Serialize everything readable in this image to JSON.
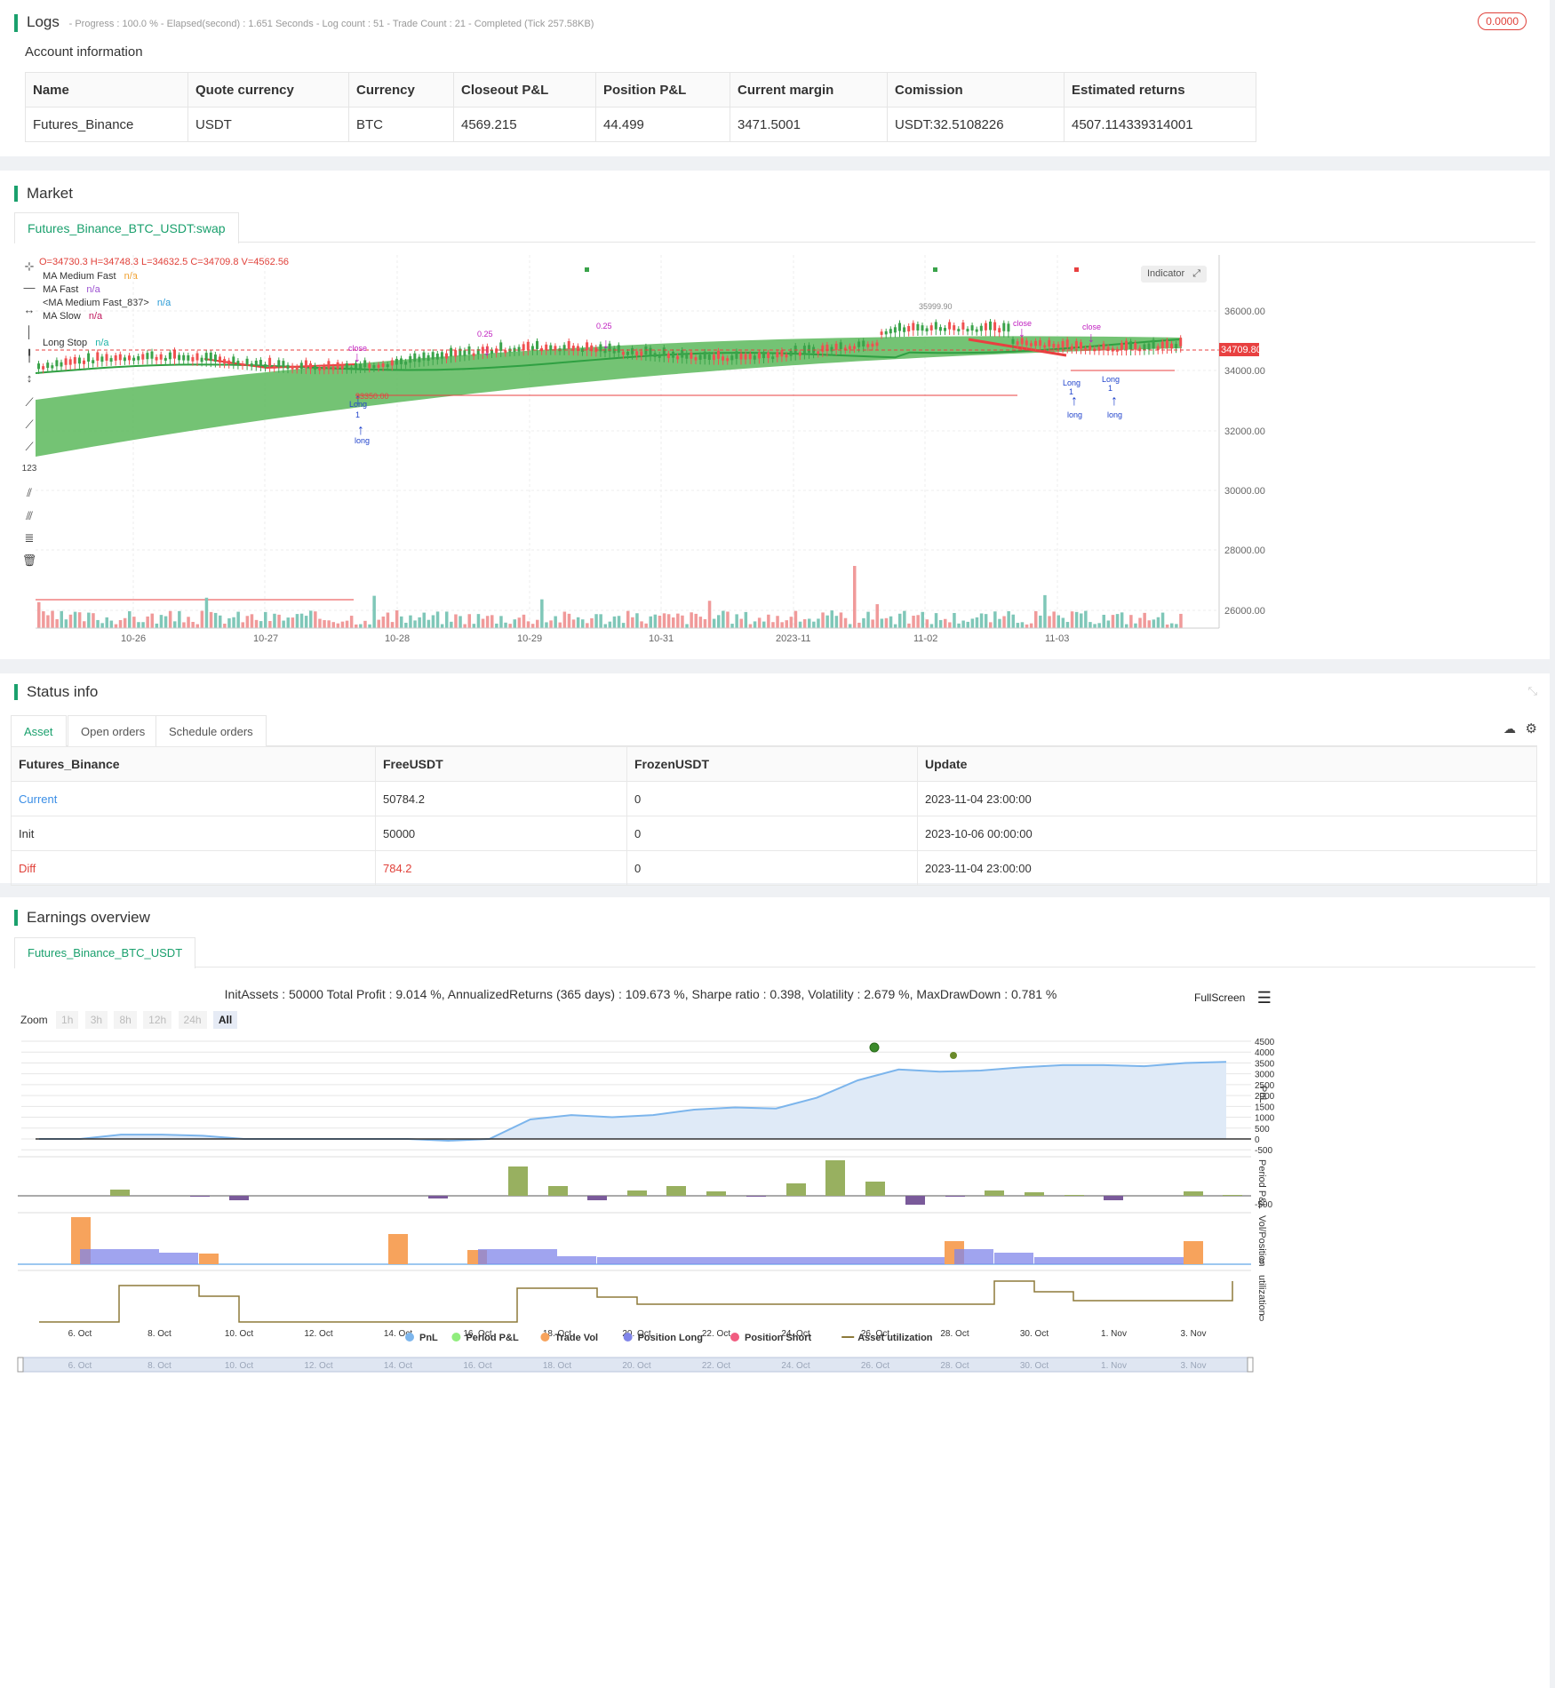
{
  "logs": {
    "title": "Logs",
    "status_line": "- Progress : 100.0 % - Elapsed(second) : 1.651 Seconds - Log count : 51 - Trade Count : 21 - Completed (Tick 257.58KB)",
    "badge": "0.0000",
    "account_title": "Account information",
    "headers": [
      "Name",
      "Quote currency",
      "Currency",
      "Closeout P&L",
      "Position P&L",
      "Current margin",
      "Comission",
      "Estimated returns"
    ],
    "row": [
      "Futures_Binance",
      "USDT",
      "BTC",
      "4569.215",
      "44.499",
      "3471.5001",
      "USDT:32.5108226",
      "4507.114339314001"
    ]
  },
  "market": {
    "title": "Market",
    "symbol_tab": "Futures_Binance_BTC_USDT:swap",
    "ohlc": "O=34730.3 H=34748.3 L=34632.5 C=34709.8 V=4562.56",
    "legend": [
      {
        "name": "MA Medium Fast",
        "val": "n/a",
        "color": "#f0a030"
      },
      {
        "name": "MA Fast",
        "val": "n/a",
        "color": "#9b4fd0"
      },
      {
        "name": "<MA Medium Fast_837>",
        "val": "n/a",
        "color": "#2a9bd6"
      },
      {
        "name": "MA Slow",
        "val": "n/a",
        "color": "#c0195e"
      },
      {
        "name": "Long Stop",
        "val": "n/a",
        "color": "#1fb5a8"
      }
    ],
    "indicator_btn": "Indicator",
    "price_label": "34709.80",
    "y_ticks": [
      "36000.00",
      "34000.00",
      "32000.00",
      "30000.00",
      "28000.00",
      "26000.00"
    ],
    "x_ticks": [
      "10-26",
      "10-27",
      "10-28",
      "10-29",
      "10-31",
      "2023-11",
      "11-02",
      "11-03"
    ],
    "annotations": {
      "high_label": "35999.90",
      "low_label": "33350.00",
      "close": "close",
      "long": "long",
      "long_cap": "Long",
      "one": "1",
      "qty": "0.25"
    }
  },
  "status": {
    "title": "Status info",
    "tabs": [
      "Asset",
      "Open orders",
      "Schedule orders"
    ],
    "headers": [
      "Futures_Binance",
      "FreeUSDT",
      "FrozenUSDT",
      "Update"
    ],
    "rows": [
      {
        "label": "Current",
        "free": "50784.2",
        "frozen": "0",
        "update": "2023-11-04 23:00:00",
        "color": "#3a8ee6",
        "valcolor": "#333"
      },
      {
        "label": "Init",
        "free": "50000",
        "frozen": "0",
        "update": "2023-10-06 00:00:00",
        "color": "#333",
        "valcolor": "#333"
      },
      {
        "label": "Diff",
        "free": "784.2",
        "frozen": "0",
        "update": "2023-11-04 23:00:00",
        "color": "#e0413a",
        "valcolor": "#e0413a"
      }
    ]
  },
  "earnings": {
    "title": "Earnings overview",
    "tab": "Futures_Binance_BTC_USDT",
    "summary": "InitAssets : 50000 Total Profit : 9.014 %, AnnualizedReturns (365 days) : 109.673 %, Sharpe ratio : 0.398, Volatility : 2.679 %, MaxDrawDown : 0.781 %",
    "fullscreen": "FullScreen",
    "zoom_label": "Zoom",
    "zoom_opts": [
      "1h",
      "3h",
      "8h",
      "12h",
      "24h",
      "All"
    ],
    "pnl_ticks": [
      "4500",
      "4000",
      "3500",
      "3000",
      "2500",
      "2000",
      "1500",
      "1000",
      "500",
      "0",
      "-500"
    ],
    "period_tick": "-500",
    "axis_titles": [
      "PnL",
      "Period P&L",
      "Vol/Position",
      "utilization"
    ],
    "zero_tick": "0",
    "x_ticks": [
      "6. Oct",
      "8. Oct",
      "10. Oct",
      "12. Oct",
      "14. Oct",
      "16. Oct",
      "18. Oct",
      "20. Oct",
      "22. Oct",
      "24. Oct",
      "26. Oct",
      "28. Oct",
      "30. Oct",
      "1. Nov",
      "3. Nov"
    ],
    "legend": [
      {
        "name": "PnL",
        "color": "#7cb5ec",
        "shape": "dot"
      },
      {
        "name": "Period P&L",
        "color": "#90ed7d",
        "shape": "dot"
      },
      {
        "name": "Trade Vol",
        "color": "#f7a35c",
        "shape": "dot"
      },
      {
        "name": "Position Long",
        "color": "#8085e9",
        "shape": "dot"
      },
      {
        "name": "Position Short",
        "color": "#f15c80",
        "shape": "dot"
      },
      {
        "name": "Asset utilization",
        "color": "#8d7a3a",
        "shape": "line"
      }
    ]
  },
  "chart_data": {
    "type": "line",
    "series": [
      {
        "name": "PnL",
        "x": [
          "10-06",
          "10-07",
          "10-08",
          "10-09",
          "10-10",
          "10-11",
          "10-12",
          "10-13",
          "10-14",
          "10-15",
          "10-16",
          "10-17",
          "10-18",
          "10-19",
          "10-20",
          "10-21",
          "10-22",
          "10-23",
          "10-24",
          "10-25",
          "10-26",
          "10-27",
          "10-28",
          "10-29",
          "10-30",
          "10-31",
          "11-01",
          "11-02",
          "11-03",
          "11-04"
        ],
        "values": [
          0,
          0,
          200,
          200,
          150,
          0,
          0,
          0,
          0,
          0,
          -80,
          0,
          900,
          1100,
          1000,
          1100,
          1350,
          1450,
          1400,
          1900,
          2700,
          3200,
          3100,
          3150,
          3300,
          3400,
          3400,
          3350,
          3500,
          3550
        ]
      }
    ],
    "ylim": [
      -500,
      4500
    ]
  }
}
